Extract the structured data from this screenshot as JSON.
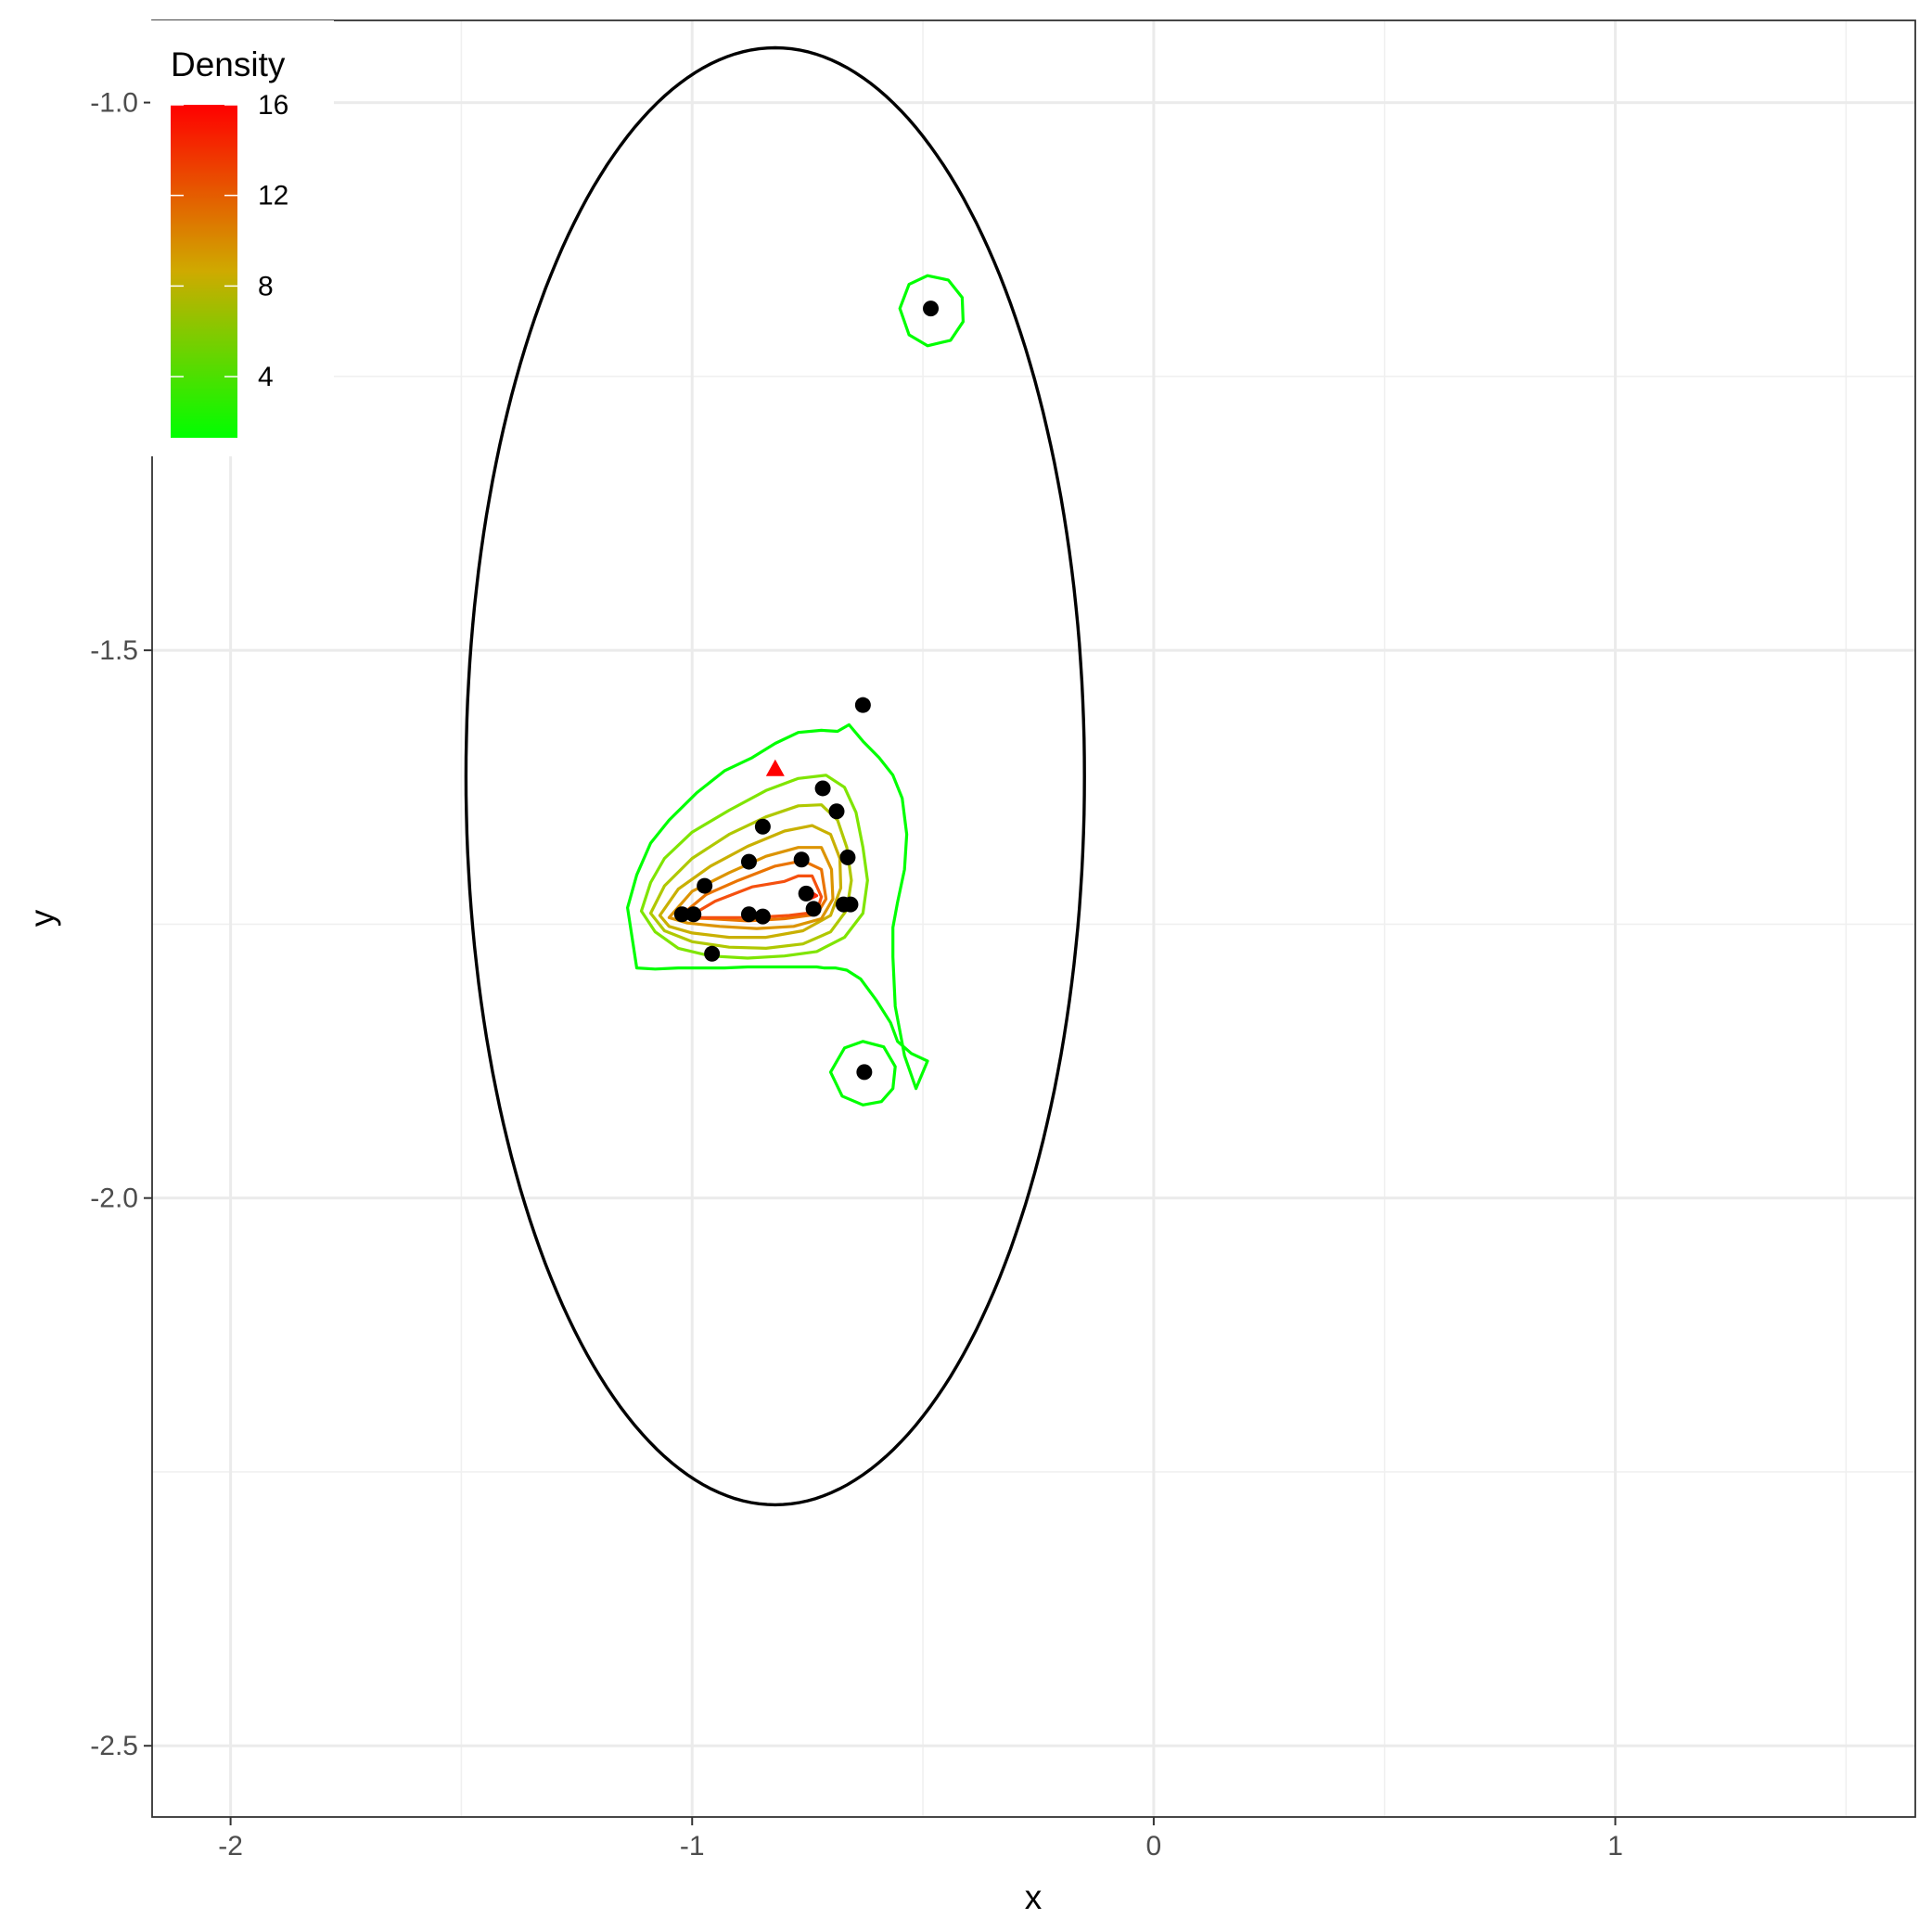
{
  "chart_data": {
    "type": "scatter",
    "xlabel": "x",
    "ylabel": "y",
    "xlim": [
      -2.17,
      1.65
    ],
    "ylim": [
      -2.565,
      -0.925
    ],
    "x_ticks": [
      -2,
      -1,
      0,
      1
    ],
    "x_tick_labels": [
      "-2",
      "-1",
      "0",
      "1"
    ],
    "y_ticks": [
      -1.0,
      -1.5,
      -2.0,
      -2.5
    ],
    "y_tick_labels": [
      "-1.0",
      "-1.5",
      "-2.0",
      "-2.5"
    ],
    "grid": true,
    "legend": {
      "title": "Density",
      "position": "top-left-inside",
      "scale": {
        "min": 1.3,
        "max": 16,
        "low_color": "#00ff00",
        "high_color": "#ff0000"
      },
      "ticks": [
        4,
        8,
        12,
        16
      ],
      "tick_labels": [
        "4",
        "8",
        "12",
        "16"
      ]
    },
    "points": {
      "color": "#000000",
      "x": [
        -0.483,
        -0.63,
        -0.717,
        -0.687,
        -0.847,
        -0.877,
        -0.763,
        -0.663,
        -0.973,
        -0.753,
        -0.737,
        -0.672,
        -0.657,
        -1.022,
        -0.997,
        -0.877,
        -0.847,
        -0.957,
        -0.627
      ],
      "y": [
        -1.188,
        -1.55,
        -1.626,
        -1.647,
        -1.661,
        -1.693,
        -1.691,
        -1.689,
        -1.715,
        -1.722,
        -1.736,
        -1.732,
        -1.732,
        -1.741,
        -1.741,
        -1.741,
        -1.743,
        -1.777,
        -1.885
      ]
    },
    "centroid": {
      "x": -0.82,
      "y": -1.608,
      "shape": "triangle",
      "color": "#ff0000"
    },
    "ellipse": {
      "center_x": -0.82,
      "center_y": -1.615,
      "semi_axis_x": 0.67,
      "semi_axis_y": 0.665,
      "color": "#000000",
      "clipped_at_top": true
    },
    "contours": [
      {
        "level": 1.3,
        "color": "#00ff00",
        "x": [
          -1.14,
          -1.12,
          -1.09,
          -1.05,
          -0.99,
          -0.93,
          -0.87,
          -0.82,
          -0.77,
          -0.72,
          -0.685,
          -0.66,
          -0.63,
          -0.595,
          -0.565,
          -0.545,
          -0.535,
          -0.54,
          -0.555,
          -0.565,
          -0.565,
          -0.56,
          -0.54,
          -0.515,
          -0.49,
          -0.525,
          -0.555,
          -0.57,
          -0.6,
          -0.635,
          -0.665,
          -0.69,
          -0.715,
          -0.73,
          -0.77,
          -0.8,
          -0.84,
          -0.88,
          -0.93,
          -0.98,
          -1.03,
          -1.08,
          -1.12,
          -1.14
        ],
        "y": [
          -1.735,
          -1.705,
          -1.676,
          -1.655,
          -1.63,
          -1.61,
          -1.598,
          -1.585,
          -1.575,
          -1.573,
          -1.574,
          -1.568,
          -1.583,
          -1.598,
          -1.614,
          -1.635,
          -1.668,
          -1.7,
          -1.73,
          -1.753,
          -1.78,
          -1.825,
          -1.87,
          -1.9,
          -1.875,
          -1.868,
          -1.857,
          -1.84,
          -1.82,
          -1.8,
          -1.792,
          -1.79,
          -1.79,
          -1.789,
          -1.789,
          -1.789,
          -1.789,
          -1.789,
          -1.79,
          -1.79,
          -1.79,
          -1.791,
          -1.79,
          -1.735
        ]
      },
      {
        "level": 3.4,
        "color": "#7fe500",
        "x": [
          -1.11,
          -1.09,
          -1.06,
          -1.0,
          -0.92,
          -0.84,
          -0.77,
          -0.71,
          -0.67,
          -0.645,
          -0.63,
          -0.62,
          -0.63,
          -0.67,
          -0.73,
          -0.8,
          -0.88,
          -0.96,
          -1.03,
          -1.08,
          -1.11
        ],
        "y": [
          -1.738,
          -1.712,
          -1.69,
          -1.666,
          -1.646,
          -1.628,
          -1.617,
          -1.614,
          -1.625,
          -1.648,
          -1.68,
          -1.71,
          -1.74,
          -1.762,
          -1.775,
          -1.779,
          -1.781,
          -1.779,
          -1.772,
          -1.757,
          -1.738
        ]
      },
      {
        "level": 5.5,
        "color": "#b0c800",
        "x": [
          -1.09,
          -1.06,
          -1.0,
          -0.92,
          -0.84,
          -0.77,
          -0.72,
          -0.685,
          -0.665,
          -0.655,
          -0.665,
          -0.7,
          -0.76,
          -0.84,
          -0.92,
          -1.0,
          -1.06,
          -1.09
        ],
        "y": [
          -1.74,
          -1.715,
          -1.69,
          -1.668,
          -1.652,
          -1.642,
          -1.641,
          -1.655,
          -1.68,
          -1.71,
          -1.737,
          -1.757,
          -1.768,
          -1.772,
          -1.771,
          -1.766,
          -1.756,
          -1.74
        ]
      },
      {
        "level": 7.6,
        "color": "#c9b000",
        "x": [
          -1.07,
          -1.03,
          -0.96,
          -0.88,
          -0.8,
          -0.74,
          -0.7,
          -0.68,
          -0.678,
          -0.7,
          -0.76,
          -0.84,
          -0.92,
          -1.0,
          -1.05,
          -1.07
        ],
        "y": [
          -1.742,
          -1.718,
          -1.697,
          -1.679,
          -1.665,
          -1.66,
          -1.668,
          -1.69,
          -1.717,
          -1.742,
          -1.756,
          -1.762,
          -1.762,
          -1.758,
          -1.752,
          -1.742
        ]
      },
      {
        "level": 9.7,
        "color": "#dc9400",
        "x": [
          -1.05,
          -1.0,
          -0.92,
          -0.84,
          -0.77,
          -0.72,
          -0.698,
          -0.695,
          -0.72,
          -0.78,
          -0.86,
          -0.94,
          -1.01,
          -1.05
        ],
        "y": [
          -1.744,
          -1.72,
          -1.703,
          -1.688,
          -1.68,
          -1.68,
          -1.7,
          -1.727,
          -1.745,
          -1.752,
          -1.754,
          -1.752,
          -1.749,
          -1.744
        ]
      },
      {
        "level": 11.8,
        "color": "#ea7400",
        "x": [
          -1.03,
          -0.97,
          -0.9,
          -0.82,
          -0.76,
          -0.72,
          -0.71,
          -0.73,
          -0.8,
          -0.88,
          -0.96,
          -1.03
        ],
        "y": [
          -1.744,
          -1.723,
          -1.71,
          -1.697,
          -1.692,
          -1.7,
          -1.727,
          -1.741,
          -1.745,
          -1.747,
          -1.745,
          -1.744
        ]
      },
      {
        "level": 13.9,
        "color": "#f5500f",
        "x": [
          -1.01,
          -0.95,
          -0.87,
          -0.8,
          -0.77,
          -0.74,
          -0.72,
          -0.73,
          -0.79,
          -0.87,
          -0.95,
          -1.01
        ],
        "y": [
          -1.744,
          -1.729,
          -1.716,
          -1.711,
          -1.706,
          -1.706,
          -1.725,
          -1.739,
          -1.742,
          -1.744,
          -1.744,
          -1.744
        ]
      },
      {
        "level": 16.0,
        "color": "#ff2a0a",
        "x": [
          -0.765,
          -0.745,
          -0.73,
          -0.745,
          -0.765
        ],
        "y": [
          -1.724,
          -1.72,
          -1.724,
          -1.727,
          -1.724
        ]
      },
      {
        "level": 1.3,
        "color": "#00ff00",
        "x": [
          -0.55,
          -0.53,
          -0.49,
          -0.445,
          -0.415,
          -0.413,
          -0.44,
          -0.49,
          -0.53,
          -0.55
        ],
        "y": [
          -1.188,
          -1.166,
          -1.158,
          -1.162,
          -1.178,
          -1.2,
          -1.217,
          -1.222,
          -1.212,
          -1.188
        ]
      },
      {
        "level": 1.3,
        "color": "#00ff00",
        "x": [
          -0.7,
          -0.67,
          -0.63,
          -0.585,
          -0.56,
          -0.565,
          -0.59,
          -0.63,
          -0.675,
          -0.7
        ],
        "y": [
          -1.885,
          -1.863,
          -1.857,
          -1.862,
          -1.88,
          -1.9,
          -1.912,
          -1.915,
          -1.907,
          -1.885
        ]
      }
    ]
  }
}
